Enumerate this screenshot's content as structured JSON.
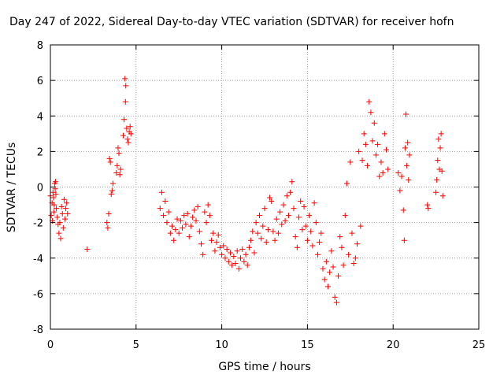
{
  "chart_data": {
    "type": "scatter",
    "title": "Day 247 of 2022, Sidereal Day-to-day VTEC variation (SDTVAR) for receiver hofn",
    "xlabel": "GPS time / hours",
    "ylabel": "SDTVAR / TECUs",
    "xlim": [
      0,
      25
    ],
    "ylim": [
      -8,
      8
    ],
    "xticks": [
      0,
      5,
      10,
      15,
      20,
      25
    ],
    "yticks": [
      -8,
      -6,
      -4,
      -2,
      0,
      2,
      4,
      6,
      8
    ],
    "grid": true,
    "marker": "+",
    "color": "#ff0000",
    "series": [
      {
        "name": "SDTVAR",
        "points": [
          [
            0.0,
            -0.5
          ],
          [
            0.05,
            -1.6
          ],
          [
            0.1,
            -0.9
          ],
          [
            0.12,
            -1.9
          ],
          [
            0.15,
            -0.3
          ],
          [
            0.18,
            -0.6
          ],
          [
            0.2,
            -1.4
          ],
          [
            0.22,
            -1.0
          ],
          [
            0.25,
            0.2
          ],
          [
            0.28,
            -0.1
          ],
          [
            0.3,
            0.3
          ],
          [
            0.32,
            -0.4
          ],
          [
            0.35,
            -1.2
          ],
          [
            0.4,
            -1.7
          ],
          [
            0.45,
            -2.1
          ],
          [
            0.5,
            -2.6
          ],
          [
            0.55,
            -2.0
          ],
          [
            0.6,
            -2.9
          ],
          [
            0.65,
            -1.1
          ],
          [
            0.7,
            -1.5
          ],
          [
            0.75,
            -2.3
          ],
          [
            0.8,
            -0.7
          ],
          [
            0.85,
            -1.8
          ],
          [
            0.9,
            -1.2
          ],
          [
            0.95,
            -0.9
          ],
          [
            1.0,
            -1.5
          ],
          [
            2.15,
            -3.5
          ],
          [
            3.3,
            -2.0
          ],
          [
            3.35,
            -2.3
          ],
          [
            3.4,
            -1.5
          ],
          [
            3.45,
            1.6
          ],
          [
            3.5,
            1.4
          ],
          [
            3.55,
            -0.4
          ],
          [
            3.6,
            -0.2
          ],
          [
            3.65,
            0.2
          ],
          [
            3.85,
            0.8
          ],
          [
            3.9,
            1.2
          ],
          [
            3.95,
            2.2
          ],
          [
            4.0,
            1.9
          ],
          [
            4.05,
            0.7
          ],
          [
            4.1,
            1.0
          ],
          [
            4.25,
            2.9
          ],
          [
            4.3,
            3.8
          ],
          [
            4.35,
            6.1
          ],
          [
            4.38,
            4.8
          ],
          [
            4.4,
            5.7
          ],
          [
            4.45,
            3.3
          ],
          [
            4.5,
            2.7
          ],
          [
            4.55,
            2.5
          ],
          [
            4.6,
            3.1
          ],
          [
            4.65,
            3.4
          ],
          [
            4.7,
            3.0
          ],
          [
            6.4,
            -1.2
          ],
          [
            6.5,
            -0.3
          ],
          [
            6.6,
            -1.6
          ],
          [
            6.7,
            -0.8
          ],
          [
            6.8,
            -2.0
          ],
          [
            6.9,
            -1.4
          ],
          [
            7.0,
            -2.6
          ],
          [
            7.1,
            -2.2
          ],
          [
            7.2,
            -3.0
          ],
          [
            7.3,
            -2.4
          ],
          [
            7.4,
            -1.8
          ],
          [
            7.5,
            -2.6
          ],
          [
            7.6,
            -1.9
          ],
          [
            7.7,
            -2.3
          ],
          [
            7.8,
            -1.6
          ],
          [
            7.9,
            -2.1
          ],
          [
            8.0,
            -1.5
          ],
          [
            8.1,
            -2.8
          ],
          [
            8.2,
            -2.2
          ],
          [
            8.3,
            -1.7
          ],
          [
            8.4,
            -1.3
          ],
          [
            8.5,
            -1.9
          ],
          [
            8.6,
            -1.1
          ],
          [
            8.7,
            -2.5
          ],
          [
            8.8,
            -3.2
          ],
          [
            8.9,
            -3.8
          ],
          [
            9.0,
            -1.4
          ],
          [
            9.1,
            -2.0
          ],
          [
            9.2,
            -1.0
          ],
          [
            9.3,
            -1.6
          ],
          [
            9.4,
            -3.0
          ],
          [
            9.5,
            -2.6
          ],
          [
            9.6,
            -3.6
          ],
          [
            9.7,
            -3.1
          ],
          [
            9.8,
            -2.7
          ],
          [
            9.9,
            -3.4
          ],
          [
            10.0,
            -3.8
          ],
          [
            10.1,
            -3.3
          ],
          [
            10.2,
            -4.0
          ],
          [
            10.3,
            -3.5
          ],
          [
            10.4,
            -4.2
          ],
          [
            10.5,
            -3.7
          ],
          [
            10.6,
            -4.4
          ],
          [
            10.7,
            -3.9
          ],
          [
            10.8,
            -4.3
          ],
          [
            10.9,
            -3.6
          ],
          [
            11.0,
            -4.6
          ],
          [
            11.1,
            -4.0
          ],
          [
            11.2,
            -3.5
          ],
          [
            11.3,
            -4.2
          ],
          [
            11.4,
            -3.8
          ],
          [
            11.5,
            -4.4
          ],
          [
            11.6,
            -3.4
          ],
          [
            11.7,
            -3.0
          ],
          [
            11.8,
            -2.5
          ],
          [
            11.9,
            -3.7
          ],
          [
            12.0,
            -2.0
          ],
          [
            12.1,
            -2.6
          ],
          [
            12.2,
            -1.6
          ],
          [
            12.3,
            -2.9
          ],
          [
            12.4,
            -2.2
          ],
          [
            12.5,
            -1.2
          ],
          [
            12.6,
            -3.1
          ],
          [
            12.7,
            -2.4
          ],
          [
            12.8,
            -0.6
          ],
          [
            12.9,
            -0.8
          ],
          [
            13.0,
            -2.5
          ],
          [
            13.1,
            -3.0
          ],
          [
            13.2,
            -1.8
          ],
          [
            13.3,
            -2.6
          ],
          [
            13.4,
            -1.4
          ],
          [
            13.5,
            -2.1
          ],
          [
            13.6,
            -1.0
          ],
          [
            13.7,
            -1.9
          ],
          [
            13.8,
            -0.5
          ],
          [
            13.9,
            -1.6
          ],
          [
            14.0,
            -0.3
          ],
          [
            14.1,
            0.3
          ],
          [
            14.2,
            -1.2
          ],
          [
            14.3,
            -2.8
          ],
          [
            14.4,
            -3.4
          ],
          [
            14.5,
            -1.7
          ],
          [
            14.6,
            -0.8
          ],
          [
            14.7,
            -2.4
          ],
          [
            14.8,
            -1.1
          ],
          [
            14.9,
            -2.2
          ],
          [
            15.0,
            -3.0
          ],
          [
            15.1,
            -1.6
          ],
          [
            15.2,
            -2.5
          ],
          [
            15.3,
            -3.3
          ],
          [
            15.4,
            -0.9
          ],
          [
            15.5,
            -2.0
          ],
          [
            15.6,
            -3.8
          ],
          [
            15.7,
            -3.1
          ],
          [
            15.8,
            -2.6
          ],
          [
            15.9,
            -4.6
          ],
          [
            16.0,
            -5.2
          ],
          [
            16.1,
            -4.2
          ],
          [
            16.2,
            -5.6
          ],
          [
            16.3,
            -4.8
          ],
          [
            16.4,
            -3.6
          ],
          [
            16.5,
            -4.5
          ],
          [
            16.6,
            -6.2
          ],
          [
            16.7,
            -6.5
          ],
          [
            16.8,
            -5.0
          ],
          [
            16.9,
            -2.8
          ],
          [
            17.0,
            -3.4
          ],
          [
            17.1,
            -4.4
          ],
          [
            17.2,
            -1.6
          ],
          [
            17.3,
            0.2
          ],
          [
            17.4,
            -3.8
          ],
          [
            17.5,
            1.4
          ],
          [
            17.6,
            -2.6
          ],
          [
            17.7,
            -4.3
          ],
          [
            17.8,
            -4.0
          ],
          [
            17.9,
            -3.2
          ],
          [
            18.0,
            2.0
          ],
          [
            18.1,
            -2.2
          ],
          [
            18.2,
            1.5
          ],
          [
            18.3,
            3.0
          ],
          [
            18.4,
            2.4
          ],
          [
            18.5,
            1.2
          ],
          [
            18.6,
            4.8
          ],
          [
            18.7,
            4.2
          ],
          [
            18.8,
            2.6
          ],
          [
            18.9,
            3.6
          ],
          [
            19.0,
            1.8
          ],
          [
            19.1,
            2.4
          ],
          [
            19.2,
            0.6
          ],
          [
            19.3,
            1.4
          ],
          [
            19.4,
            0.8
          ],
          [
            19.5,
            3.0
          ],
          [
            19.6,
            2.1
          ],
          [
            19.7,
            1.0
          ],
          [
            20.3,
            0.8
          ],
          [
            20.4,
            -0.2
          ],
          [
            20.5,
            0.6
          ],
          [
            20.6,
            -1.3
          ],
          [
            20.65,
            -3.0
          ],
          [
            20.7,
            2.2
          ],
          [
            20.75,
            4.1
          ],
          [
            20.8,
            1.2
          ],
          [
            20.85,
            2.5
          ],
          [
            20.9,
            0.4
          ],
          [
            20.95,
            1.8
          ],
          [
            22.0,
            -1.0
          ],
          [
            22.05,
            -1.2
          ],
          [
            22.5,
            -0.3
          ],
          [
            22.55,
            0.4
          ],
          [
            22.6,
            1.5
          ],
          [
            22.65,
            2.7
          ],
          [
            22.7,
            1.0
          ],
          [
            22.75,
            2.2
          ],
          [
            22.8,
            3.0
          ],
          [
            22.85,
            0.9
          ],
          [
            22.9,
            -0.5
          ]
        ]
      }
    ]
  }
}
